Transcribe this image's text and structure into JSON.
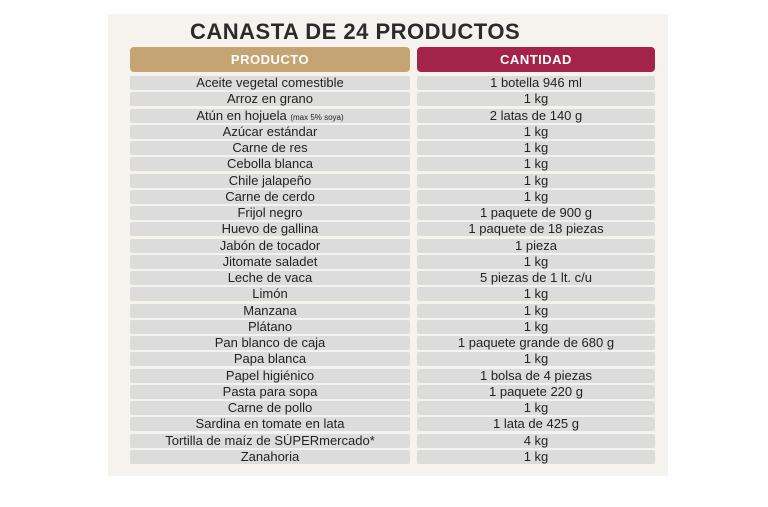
{
  "title": "CANASTA DE 24 PRODUCTOS",
  "colors": {
    "producto_header": "#c4a472",
    "cantidad_header": "#a3234a",
    "row": "#dcdcdc"
  },
  "headers": {
    "producto": "PRODUCTO",
    "cantidad": "CANTIDAD"
  },
  "rows": [
    {
      "producto": "Aceite vegetal comestible",
      "cantidad": "1 botella 946 ml"
    },
    {
      "producto": "Arroz en grano",
      "cantidad": "1 kg"
    },
    {
      "producto": "Atún en hojuela",
      "nota": "(max 5% soya)",
      "cantidad": "2 latas de 140 g"
    },
    {
      "producto": "Azúcar estándar",
      "cantidad": "1 kg"
    },
    {
      "producto": "Carne de res",
      "cantidad": "1 kg"
    },
    {
      "producto": "Cebolla blanca",
      "cantidad": "1 kg"
    },
    {
      "producto": "Chile jalapeño",
      "cantidad": "1 kg"
    },
    {
      "producto": "Carne de cerdo",
      "cantidad": "1 kg"
    },
    {
      "producto": "Frijol negro",
      "cantidad": "1 paquete de 900 g"
    },
    {
      "producto": "Huevo de gallina",
      "cantidad": "1 paquete de 18 piezas"
    },
    {
      "producto": "Jabón de tocador",
      "cantidad": "1 pieza"
    },
    {
      "producto": "Jitomate saladet",
      "cantidad": "1 kg"
    },
    {
      "producto": "Leche de vaca",
      "cantidad": "5 piezas de 1 lt. c/u"
    },
    {
      "producto": "Limón",
      "cantidad": "1 kg"
    },
    {
      "producto": "Manzana",
      "cantidad": "1 kg"
    },
    {
      "producto": "Plátano",
      "cantidad": "1 kg"
    },
    {
      "producto": "Pan blanco de caja",
      "cantidad": "1 paquete grande de 680 g"
    },
    {
      "producto": "Papa blanca",
      "cantidad": "1 kg"
    },
    {
      "producto": "Papel higiénico",
      "cantidad": "1 bolsa de 4 piezas"
    },
    {
      "producto": "Pasta para sopa",
      "cantidad": "1 paquete 220 g"
    },
    {
      "producto": "Carne de pollo",
      "cantidad": "1 kg"
    },
    {
      "producto": "Sardina en tomate en lata",
      "cantidad": "1 lata de 425 g"
    },
    {
      "producto": "Tortilla de maíz de SÚPERmercado*",
      "cantidad": "4 kg"
    },
    {
      "producto": "Zanahoria",
      "cantidad": "1 kg"
    }
  ]
}
